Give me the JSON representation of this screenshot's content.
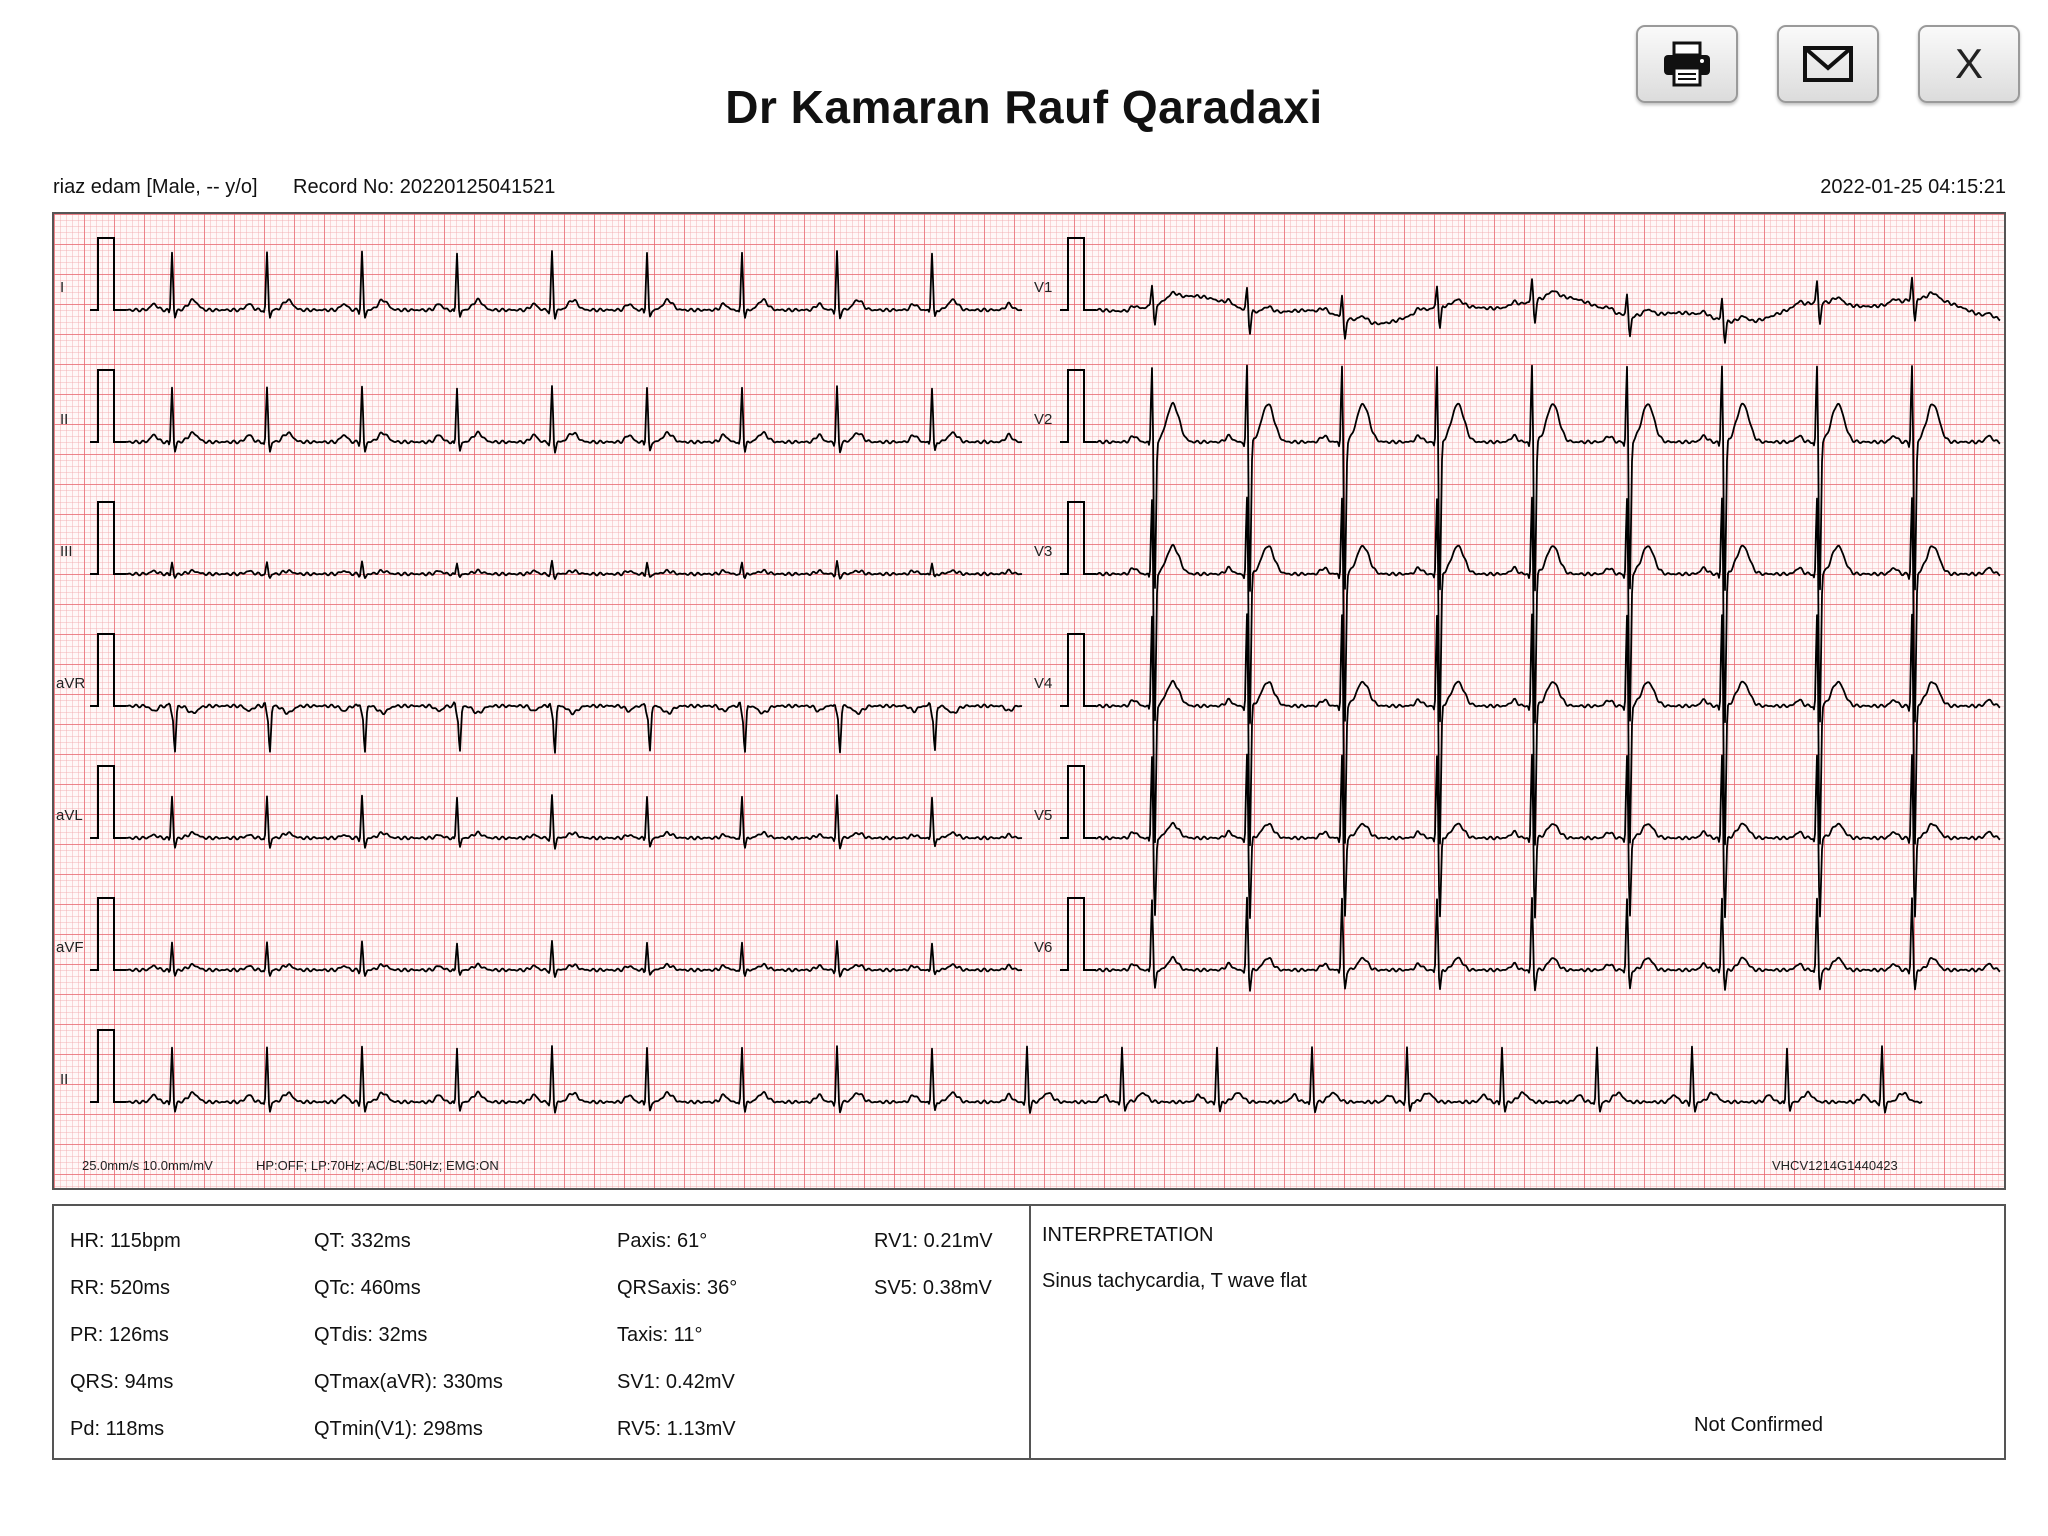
{
  "header": {
    "title": "Dr Kamaran Rauf Qaradaxi",
    "print_label": "",
    "email_label": "",
    "close_label": "X"
  },
  "patient": {
    "info": "riaz edam [Male, -- y/o]",
    "record": "Record No: 20220125041521",
    "datetime": "2022-01-25 04:15:21"
  },
  "ecg": {
    "leads_left": [
      "I",
      "II",
      "III",
      "aVR",
      "aVL",
      "aVF"
    ],
    "leads_right": [
      "V1",
      "V2",
      "V3",
      "V4",
      "V5",
      "V6"
    ],
    "rhythm_lead": "II",
    "settings_speed": "25.0mm/s  10.0mm/mV",
    "settings_filter": "HP:OFF; LP:70Hz; AC/BL:50Hz; EMG:ON",
    "device_id": "VHCV1214G1440423",
    "colors": {
      "grid_major": "#e86870",
      "grid_minor": "#f2aaae",
      "trace": "#000000"
    }
  },
  "measurements": {
    "columns": [
      [
        "HR: 115bpm",
        "RR: 520ms",
        "PR: 126ms",
        "QRS: 94ms",
        "Pd: 118ms"
      ],
      [
        "QT: 332ms",
        "QTc: 460ms",
        "QTdis: 32ms",
        "QTmax(aVR): 330ms",
        "QTmin(V1): 298ms"
      ],
      [
        "Paxis: 61°",
        "QRSaxis: 36°",
        "Taxis: 11°",
        "SV1: 0.42mV",
        "RV5: 1.13mV"
      ],
      [
        "RV1: 0.21mV",
        "SV5: 0.38mV"
      ]
    ]
  },
  "interpretation": {
    "title": "INTERPRETATION",
    "text": "Sinus tachycardia, T wave flat",
    "status": "Not Confirmed"
  }
}
